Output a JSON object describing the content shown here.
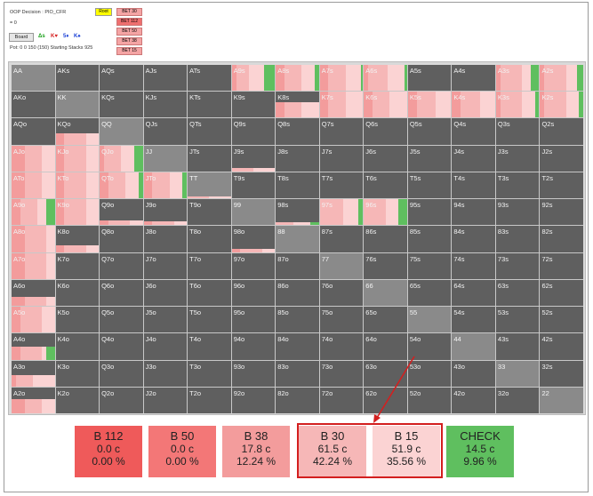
{
  "header": {
    "title": "OOP Decision : PIO_CFR",
    "line2": "= 0",
    "board_button": "Board",
    "suits": [
      "Δs",
      "K♥",
      "5♦",
      "K♠"
    ],
    "suit_colors": [
      "#1aa01a",
      "#d62020",
      "#1a40d6",
      "#1a40d6"
    ],
    "pot_info": "Pot: 0 0 150 (150) Starting Stacks 925"
  },
  "tree": {
    "root": "Root",
    "nodes": [
      "BET 30",
      "BET 112",
      "BET 50",
      "BET 38",
      "BET 15"
    ],
    "selected": 1
  },
  "colors": {
    "b112": "#ef5a5a",
    "b50": "#f37777",
    "b38": "#f39c9c",
    "b30": "#f6b7b7",
    "b15": "#fbd3d3",
    "check": "#5fbf5f",
    "highlight": "#d31f1f"
  },
  "grid": {
    "rows": [
      [
        "AA",
        "AKs",
        "AQs",
        "AJs",
        "ATs",
        "A9s",
        "A8s",
        "A7s",
        "A6s",
        "A5s",
        "A4s",
        "A3s",
        "A2s"
      ],
      [
        "AKo",
        "KK",
        "KQs",
        "KJs",
        "KTs",
        "K9s",
        "K8s",
        "K7s",
        "K6s",
        "K5s",
        "K4s",
        "K3s",
        "K2s"
      ],
      [
        "AQo",
        "KQo",
        "QQ",
        "QJs",
        "QTs",
        "Q9s",
        "Q8s",
        "Q7s",
        "Q6s",
        "Q5s",
        "Q4s",
        "Q3s",
        "Q2s"
      ],
      [
        "AJo",
        "KJo",
        "QJo",
        "JJ",
        "JTs",
        "J9s",
        "J8s",
        "J7s",
        "J6s",
        "J5s",
        "J4s",
        "J3s",
        "J2s"
      ],
      [
        "ATo",
        "KTo",
        "QTo",
        "JTo",
        "TT",
        "T9s",
        "T8s",
        "T7s",
        "T6s",
        "T5s",
        "T4s",
        "T3s",
        "T2s"
      ],
      [
        "A9o",
        "K9o",
        "Q9o",
        "J9o",
        "T9o",
        "99",
        "98s",
        "97s",
        "96s",
        "95s",
        "94s",
        "93s",
        "92s"
      ],
      [
        "A8o",
        "K8o",
        "Q8o",
        "J8o",
        "T8o",
        "98o",
        "88",
        "87s",
        "86s",
        "85s",
        "84s",
        "83s",
        "82s"
      ],
      [
        "A7o",
        "K7o",
        "Q7o",
        "J7o",
        "T7o",
        "97o",
        "87o",
        "77",
        "76s",
        "75s",
        "74s",
        "73s",
        "72s"
      ],
      [
        "A6o",
        "K6o",
        "Q6o",
        "J6o",
        "T6o",
        "96o",
        "86o",
        "76o",
        "66",
        "65s",
        "64s",
        "63s",
        "62s"
      ],
      [
        "A5o",
        "K5o",
        "Q5o",
        "J5o",
        "T5o",
        "95o",
        "85o",
        "75o",
        "65o",
        "55",
        "54s",
        "53s",
        "52s"
      ],
      [
        "A4o",
        "K4o",
        "Q4o",
        "J4o",
        "T4o",
        "94o",
        "84o",
        "74o",
        "64o",
        "54o",
        "44",
        "43s",
        "42s"
      ],
      [
        "A3o",
        "K3o",
        "Q3o",
        "J3o",
        "T3o",
        "93o",
        "83o",
        "73o",
        "63o",
        "53o",
        "43o",
        "33",
        "32s"
      ],
      [
        "A2o",
        "K2o",
        "Q2o",
        "J2o",
        "T2o",
        "92o",
        "82o",
        "72o",
        "62o",
        "52o",
        "42o",
        "32o",
        "22"
      ]
    ],
    "fills": {
      "A9s": [
        1.0,
        [
          0,
          0,
          0.1,
          0.3,
          0.35,
          0.25
        ]
      ],
      "A8s": [
        1.0,
        [
          0,
          0,
          0.2,
          0.4,
          0.3,
          0.1
        ]
      ],
      "A7s": [
        1.0,
        [
          0,
          0,
          0.2,
          0.4,
          0.35,
          0.05
        ]
      ],
      "A6s": [
        1.0,
        [
          0,
          0,
          0.1,
          0.45,
          0.4,
          0.05
        ]
      ],
      "A3s": [
        1.0,
        [
          0,
          0,
          0.1,
          0.5,
          0.2,
          0.2
        ]
      ],
      "A2s": [
        1.0,
        [
          0,
          0,
          0.1,
          0.5,
          0.25,
          0.15
        ]
      ],
      "K8s": [
        0.6,
        [
          0,
          0,
          0.2,
          0.4,
          0.4,
          0
        ]
      ],
      "K7s": [
        1.0,
        [
          0,
          0,
          0.2,
          0.4,
          0.4,
          0
        ]
      ],
      "K6s": [
        1.0,
        [
          0,
          0,
          0.2,
          0.4,
          0.4,
          0
        ]
      ],
      "K5s": [
        1.0,
        [
          0,
          0,
          0.2,
          0.45,
          0.35,
          0
        ]
      ],
      "K4s": [
        1.0,
        [
          0,
          0,
          0.2,
          0.45,
          0.35,
          0
        ]
      ],
      "K3s": [
        1.0,
        [
          0,
          0,
          0.1,
          0.5,
          0.3,
          0.1
        ]
      ],
      "K2s": [
        1.0,
        [
          0,
          0,
          0.1,
          0.5,
          0.3,
          0.1
        ]
      ],
      "KQo": [
        0.45,
        [
          0,
          0,
          0.2,
          0.5,
          0.3,
          0
        ]
      ],
      "AJo": [
        1.0,
        [
          0,
          0,
          0.3,
          0.4,
          0.3,
          0
        ]
      ],
      "KJo": [
        1.0,
        [
          0,
          0,
          0.2,
          0.5,
          0.3,
          0
        ]
      ],
      "QJo": [
        1.0,
        [
          0,
          0,
          0.1,
          0.4,
          0.3,
          0.2
        ]
      ],
      "J9s": [
        0.15,
        [
          0,
          0,
          0,
          0.5,
          0.5,
          0
        ]
      ],
      "ATo": [
        1.0,
        [
          0,
          0,
          0.3,
          0.4,
          0.3,
          0
        ]
      ],
      "KTo": [
        1.0,
        [
          0,
          0,
          0.2,
          0.5,
          0.3,
          0
        ]
      ],
      "QTo": [
        1.0,
        [
          0,
          0,
          0.2,
          0.4,
          0.3,
          0.1
        ]
      ],
      "JTo": [
        1.0,
        [
          0,
          0,
          0.2,
          0.4,
          0.3,
          0.1
        ]
      ],
      "A9o": [
        1.0,
        [
          0,
          0,
          0.2,
          0.4,
          0.2,
          0.2
        ]
      ],
      "K9o": [
        1.0,
        [
          0,
          0,
          0.2,
          0.5,
          0.3,
          0
        ]
      ],
      "Q9o": [
        0.2,
        [
          0,
          0,
          0.2,
          0.5,
          0.3,
          0
        ]
      ],
      "J9o": [
        0.15,
        [
          0,
          0,
          0.2,
          0.5,
          0.3,
          0
        ]
      ],
      "98s": [
        0.12,
        [
          0,
          0,
          0,
          0.4,
          0.4,
          0.2
        ]
      ],
      "97s": [
        1.0,
        [
          0,
          0,
          0,
          0.55,
          0.35,
          0.1
        ]
      ],
      "96s": [
        1.0,
        [
          0,
          0,
          0,
          0.5,
          0.3,
          0.2
        ]
      ],
      "A8o": [
        1.0,
        [
          0,
          0,
          0.3,
          0.5,
          0.2,
          0
        ]
      ],
      "K8o": [
        0.25,
        [
          0,
          0,
          0.2,
          0.5,
          0.3,
          0
        ]
      ],
      "98o": [
        0.12,
        [
          0,
          0,
          0.2,
          0.5,
          0.3,
          0
        ]
      ],
      "A7o": [
        1.0,
        [
          0,
          0,
          0.3,
          0.5,
          0.2,
          0
        ]
      ],
      "A6o": [
        0.35,
        [
          0,
          0,
          0.3,
          0.5,
          0.2,
          0
        ]
      ],
      "A5o": [
        1.0,
        [
          0,
          0,
          0.2,
          0.5,
          0.3,
          0
        ]
      ],
      "A4o": [
        0.5,
        [
          0,
          0,
          0.2,
          0.5,
          0.1,
          0.2
        ]
      ],
      "A3o": [
        0.45,
        [
          0,
          0,
          0.1,
          0.4,
          0.5,
          0
        ]
      ],
      "A2o": [
        0.55,
        [
          0,
          0,
          0.3,
          0.4,
          0.3,
          0
        ]
      ],
      "TT": [
        0.08,
        [
          0,
          0,
          0,
          0.5,
          0.5,
          0
        ]
      ],
      "T9s": [
        0,
        [
          0,
          0,
          0,
          0,
          0,
          0
        ]
      ]
    }
  },
  "actions": [
    {
      "title": "B 112",
      "combos": "0.0 c",
      "pct": "0.00 %",
      "color_key": "b112"
    },
    {
      "title": "B 50",
      "combos": "0.0 c",
      "pct": "0.00 %",
      "color_key": "b50"
    },
    {
      "title": "B 38",
      "combos": "17.8 c",
      "pct": "12.24 %",
      "color_key": "b38"
    },
    {
      "title": "B 30",
      "combos": "61.5 c",
      "pct": "42.24 %",
      "color_key": "b30"
    },
    {
      "title": "B 15",
      "combos": "51.9 c",
      "pct": "35.56 %",
      "color_key": "b15"
    },
    {
      "title": "CHECK",
      "combos": "14.5 c",
      "pct": "9.96 %",
      "color_key": "check"
    }
  ]
}
